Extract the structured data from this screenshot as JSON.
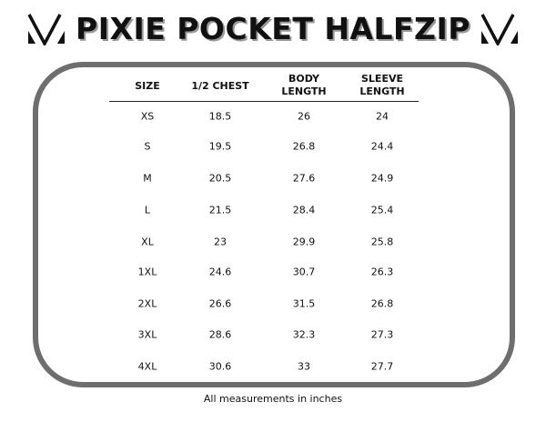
{
  "title": "PIXIE POCKET HALFZIP",
  "logo_icon": "v-monogram-icon",
  "border_color": "#6e6e6e",
  "headers": [
    "SIZE",
    "1/2 CHEST",
    "BODY\nLENGTH",
    "SLEEVE\nLENGTH"
  ],
  "rows": [
    [
      "XS",
      "18.5",
      "26",
      "24"
    ],
    [
      "S",
      "19.5",
      "26.8",
      "24.4"
    ],
    [
      "M",
      "20.5",
      "27.6",
      "24.9"
    ],
    [
      "L",
      "21.5",
      "28.4",
      "25.4"
    ],
    [
      "XL",
      "23",
      "29.9",
      "25.8"
    ],
    [
      "1XL",
      "24.6",
      "30.7",
      "26.3"
    ],
    [
      "2XL",
      "26.6",
      "31.5",
      "26.8"
    ],
    [
      "3XL",
      "28.6",
      "32.3",
      "27.3"
    ],
    [
      "4XL",
      "30.6",
      "33",
      "27.7"
    ]
  ],
  "footer": "All measurements in inches"
}
